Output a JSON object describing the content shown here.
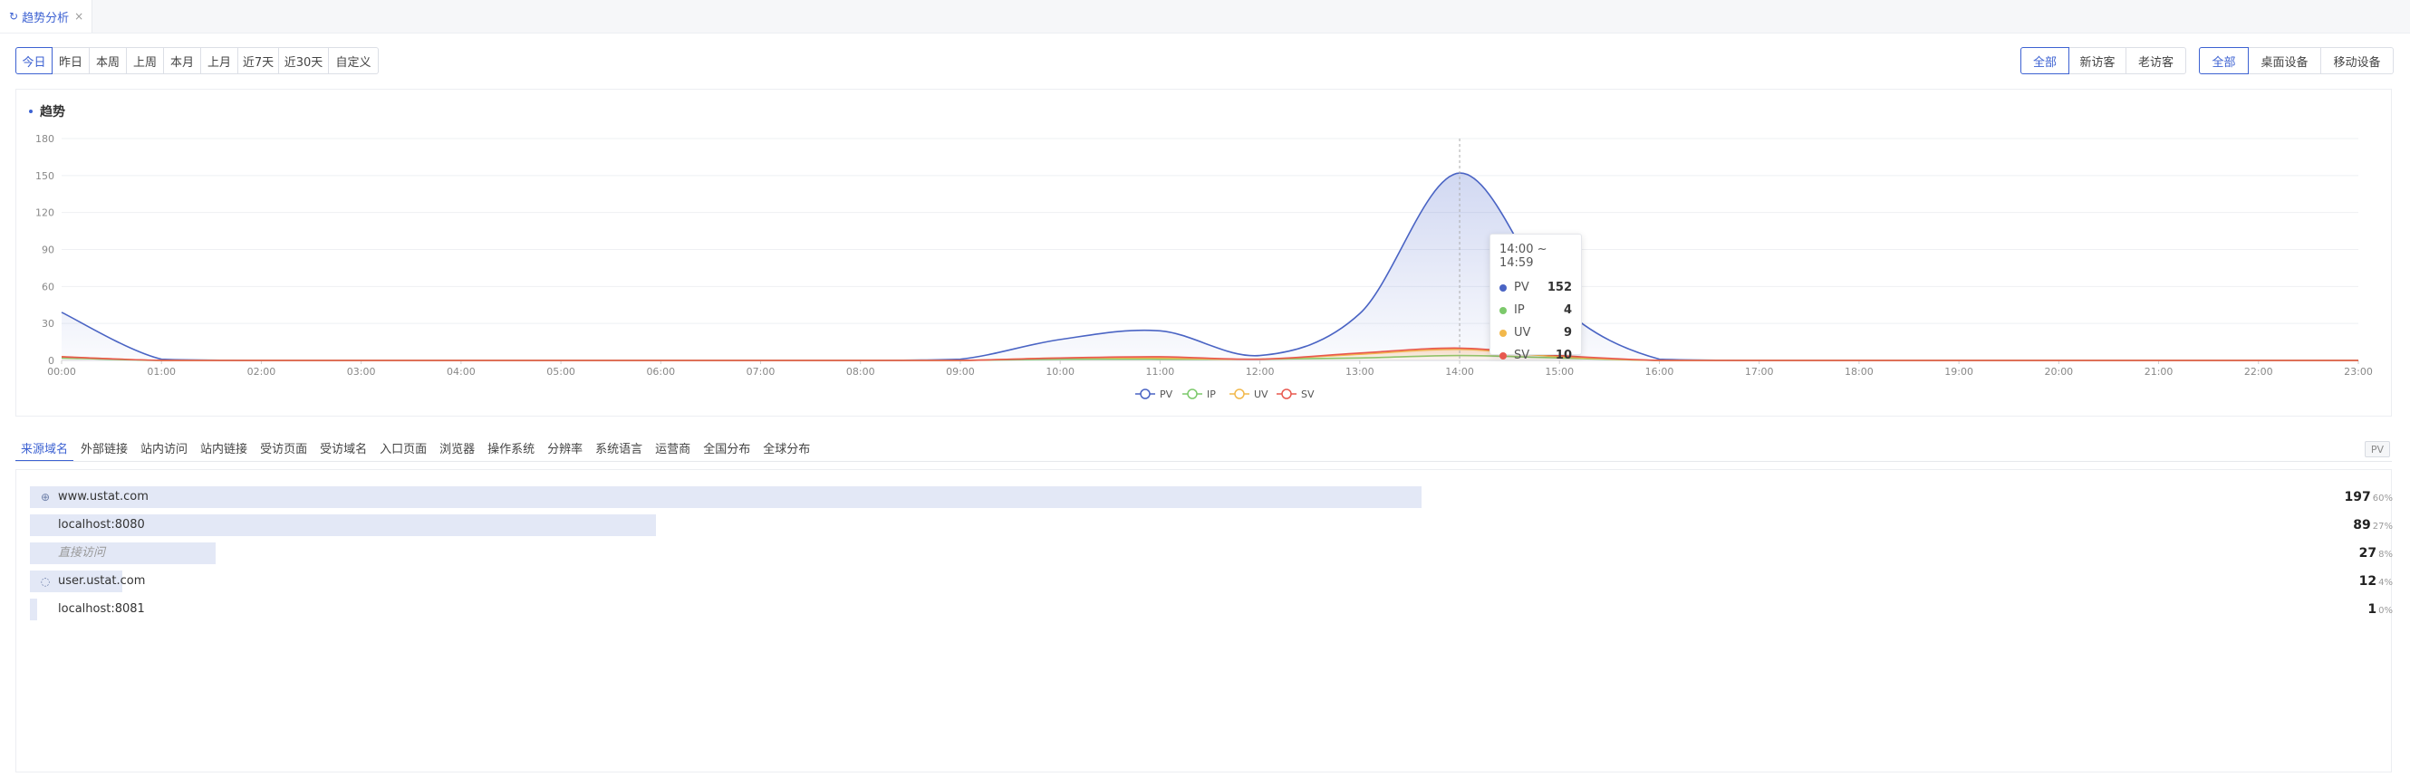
{
  "tab": {
    "icon": "refresh-icon",
    "label": "趋势分析",
    "close": "×"
  },
  "date_ranges": [
    {
      "label": "今日",
      "active": true
    },
    {
      "label": "昨日",
      "active": false
    },
    {
      "label": "本周",
      "active": false
    },
    {
      "label": "上周",
      "active": false
    },
    {
      "label": "本月",
      "active": false
    },
    {
      "label": "上月",
      "active": false
    },
    {
      "label": "近7天",
      "active": false
    },
    {
      "label": "近30天",
      "active": false
    },
    {
      "label": "自定义",
      "active": false
    }
  ],
  "visitor_filter": [
    {
      "label": "全部",
      "active": true
    },
    {
      "label": "新访客",
      "active": false
    },
    {
      "label": "老访客",
      "active": false
    }
  ],
  "device_filter": [
    {
      "label": "全部",
      "active": true
    },
    {
      "label": "桌面设备",
      "active": false
    },
    {
      "label": "移动设备",
      "active": false
    }
  ],
  "chart_title": "趋势",
  "chart_data": {
    "type": "area",
    "x": [
      "00:00",
      "01:00",
      "02:00",
      "03:00",
      "04:00",
      "05:00",
      "06:00",
      "07:00",
      "08:00",
      "09:00",
      "10:00",
      "11:00",
      "12:00",
      "13:00",
      "14:00",
      "15:00",
      "16:00",
      "17:00",
      "18:00",
      "19:00",
      "20:00",
      "21:00",
      "22:00",
      "23:00"
    ],
    "ylim": [
      0,
      180
    ],
    "yticks": [
      0,
      30,
      60,
      90,
      120,
      150,
      180
    ],
    "series": [
      {
        "name": "PV",
        "color": "#4a64c4",
        "values": [
          39,
          1,
          0,
          0,
          0,
          0,
          0,
          0,
          0,
          1,
          17,
          24,
          4,
          38,
          152,
          45,
          1,
          0,
          0,
          0,
          0,
          0,
          0,
          0
        ]
      },
      {
        "name": "IP",
        "color": "#7cc96b",
        "values": [
          2,
          0,
          0,
          0,
          0,
          0,
          0,
          0,
          0,
          0,
          1,
          1,
          1,
          2,
          4,
          2,
          0,
          0,
          0,
          0,
          0,
          0,
          0,
          0
        ]
      },
      {
        "name": "UV",
        "color": "#f2b84b",
        "values": [
          3,
          0,
          0,
          0,
          0,
          0,
          0,
          0,
          0,
          0,
          2,
          2,
          1,
          5,
          9,
          3,
          0,
          0,
          0,
          0,
          0,
          0,
          0,
          0
        ]
      },
      {
        "name": "SV",
        "color": "#e8584f",
        "values": [
          3,
          0,
          0,
          0,
          0,
          0,
          0,
          0,
          0,
          0,
          2,
          3,
          1,
          6,
          10,
          4,
          0,
          0,
          0,
          0,
          0,
          0,
          0,
          0
        ]
      }
    ],
    "grid": true,
    "legend": "bottom-center"
  },
  "tooltip": {
    "title": "14:00 ~ 14:59",
    "rows": [
      {
        "name": "PV",
        "value": "152",
        "color": "#4a64c4"
      },
      {
        "name": "IP",
        "value": "4",
        "color": "#7cc96b"
      },
      {
        "name": "UV",
        "value": "9",
        "color": "#f2b84b"
      },
      {
        "name": "SV",
        "value": "10",
        "color": "#e8584f"
      }
    ]
  },
  "category_tabs": [
    "来源域名",
    "外部链接",
    "站内访问",
    "站内链接",
    "受访页面",
    "受访域名",
    "入口页面",
    "浏览器",
    "操作系统",
    "分辨率",
    "系统语言",
    "运营商",
    "全国分布",
    "全球分布"
  ],
  "active_category": "来源域名",
  "metric_badge": "PV",
  "source_list": [
    {
      "label": "www.ustat.com",
      "value": "197",
      "pct": "60%",
      "fraction": 0.6,
      "icon": "globe-icon",
      "italic": false
    },
    {
      "label": "localhost:8080",
      "value": "89",
      "pct": "27%",
      "fraction": 0.27,
      "icon": "",
      "italic": false
    },
    {
      "label": "直接访问",
      "value": "27",
      "pct": "8%",
      "fraction": 0.08,
      "icon": "",
      "italic": true
    },
    {
      "label": "user.ustat.com",
      "value": "12",
      "pct": "4%",
      "fraction": 0.04,
      "icon": "globe-outline-icon",
      "italic": false
    },
    {
      "label": "localhost:8081",
      "value": "1",
      "pct": "0%",
      "fraction": 0.003,
      "icon": "",
      "italic": false
    }
  ]
}
